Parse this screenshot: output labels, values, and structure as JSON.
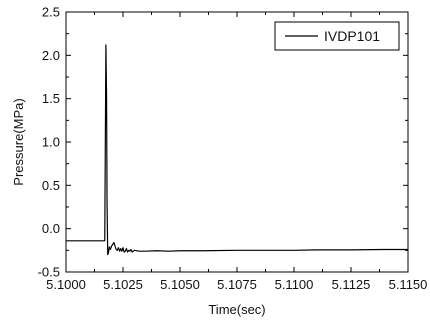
{
  "chart_data": {
    "type": "line",
    "xlabel": "Time(sec)",
    "ylabel": "Pressure(MPa)",
    "xlim": [
      5.1,
      5.115
    ],
    "ylim": [
      -0.5,
      2.5
    ],
    "x_ticks": [
      "5.1000",
      "5.1025",
      "5.1050",
      "5.1075",
      "5.1100",
      "5.1125",
      "5.1150"
    ],
    "y_ticks": [
      "-0.5",
      "0.0",
      "0.5",
      "1.0",
      "1.5",
      "2.0",
      "2.5"
    ],
    "legend_position": "top-right",
    "grid": false,
    "series": [
      {
        "name": "IVDP101",
        "color": "#000000",
        "x": [
          5.1,
          5.101,
          5.1017,
          5.10175,
          5.10178,
          5.1018,
          5.10183,
          5.10186,
          5.1019,
          5.10195,
          5.102,
          5.10205,
          5.1021,
          5.10215,
          5.1022,
          5.10225,
          5.1023,
          5.10235,
          5.1024,
          5.10245,
          5.1025,
          5.10255,
          5.1026,
          5.10265,
          5.1027,
          5.10275,
          5.1028,
          5.10285,
          5.1029,
          5.103,
          5.1032,
          5.1035,
          5.104,
          5.1045,
          5.105,
          5.106,
          5.1075,
          5.109,
          5.11,
          5.111,
          5.1125,
          5.114,
          5.115
        ],
        "y": [
          -0.14,
          -0.14,
          -0.14,
          2.12,
          1.5,
          0.3,
          -0.3,
          -0.28,
          -0.21,
          -0.24,
          -0.2,
          -0.18,
          -0.16,
          -0.2,
          -0.24,
          -0.25,
          -0.22,
          -0.26,
          -0.23,
          -0.26,
          -0.22,
          -0.27,
          -0.26,
          -0.23,
          -0.27,
          -0.25,
          -0.26,
          -0.24,
          -0.27,
          -0.25,
          -0.26,
          -0.26,
          -0.255,
          -0.26,
          -0.255,
          -0.255,
          -0.25,
          -0.25,
          -0.25,
          -0.245,
          -0.245,
          -0.24,
          -0.24
        ]
      }
    ]
  }
}
